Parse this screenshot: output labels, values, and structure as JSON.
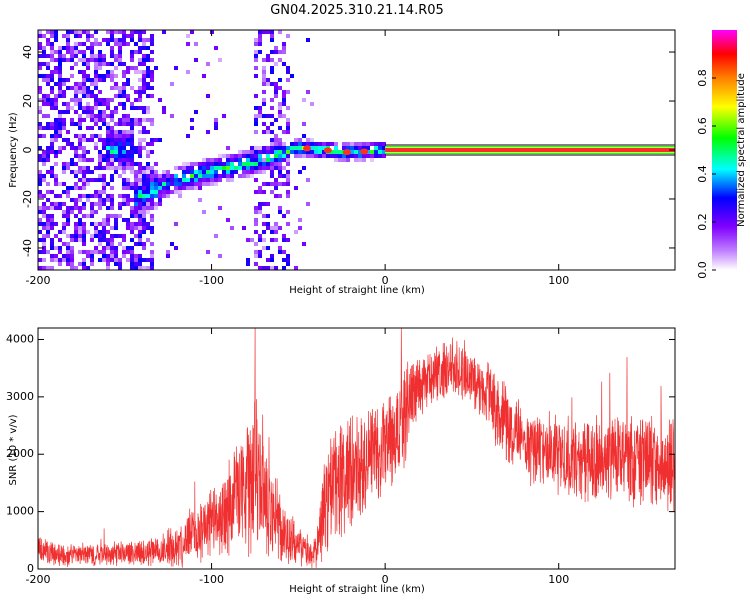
{
  "title": "GN04.2025.310.21.14.R05",
  "colors": {
    "snr_line": "#f03030",
    "ridge": "#ff2a2a",
    "frame": "#000000",
    "background": "#ffffff"
  },
  "chart_data": [
    {
      "type": "heatmap",
      "name": "spectrogram",
      "xlabel": "Height of straight line (km)",
      "ylabel": "Frequency (Hz)",
      "xlim": [
        -200,
        167
      ],
      "ylim": [
        -49,
        49
      ],
      "xticks": [
        "-200",
        "-100",
        "0",
        "100"
      ],
      "yticks": [
        "-40",
        "-20",
        "0",
        "20",
        "40"
      ],
      "colorbar": {
        "label": "Normalized spectral amplitude",
        "range": [
          0.0,
          1.0
        ],
        "ticks": [
          "0.0",
          "0.2",
          "0.4",
          "0.6",
          "0.8"
        ],
        "colormap": [
          "#ffffff",
          "#c080ff",
          "#8000ff",
          "#0000ff",
          "#00ffff",
          "#00ff00",
          "#ffff00",
          "#ff8000",
          "#ff0000",
          "#ff00ff"
        ]
      },
      "ridge": {
        "description_points": [
          {
            "x": -145,
            "y": -20
          },
          {
            "x": -120,
            "y": -12
          },
          {
            "x": -95,
            "y": -8
          },
          {
            "x": -70,
            "y": -4
          },
          {
            "x": -50,
            "y": 1
          },
          {
            "x": -20,
            "y": -1
          },
          {
            "x": 0,
            "y": 0
          },
          {
            "x": 167,
            "y": 0
          }
        ],
        "steady_amplitude": 0.9
      }
    },
    {
      "type": "line",
      "name": "snr",
      "xlabel": "Height of straight line (km)",
      "ylabel": "SNR (10 * v/v)",
      "xlim": [
        -200,
        167
      ],
      "ylim": [
        0,
        4200
      ],
      "xticks": [
        "-200",
        "-100",
        "0",
        "100"
      ],
      "yticks": [
        "0",
        "1000",
        "2000",
        "3000",
        "4000"
      ],
      "envelope": {
        "x": [
          -200,
          -190,
          -170,
          -150,
          -130,
          -120,
          -110,
          -100,
          -90,
          -80,
          -75,
          -70,
          -60,
          -50,
          -40,
          -35,
          -30,
          -20,
          -10,
          0,
          10,
          20,
          30,
          40,
          50,
          60,
          70,
          80,
          90,
          100,
          120,
          140,
          167
        ],
        "mean": [
          350,
          250,
          250,
          270,
          320,
          400,
          600,
          800,
          1100,
          1500,
          1600,
          1400,
          700,
          400,
          250,
          1100,
          1400,
          1700,
          2000,
          2100,
          2600,
          3200,
          3400,
          3500,
          3300,
          3000,
          2500,
          2200,
          2100,
          2000,
          1900,
          1900,
          1800
        ],
        "noise": [
          250,
          200,
          200,
          200,
          250,
          400,
          500,
          600,
          900,
          1200,
          1300,
          1200,
          600,
          350,
          250,
          900,
          1000,
          1100,
          1000,
          900,
          1000,
          600,
          500,
          500,
          500,
          600,
          700,
          700,
          700,
          700,
          800,
          800,
          900
        ]
      }
    }
  ]
}
